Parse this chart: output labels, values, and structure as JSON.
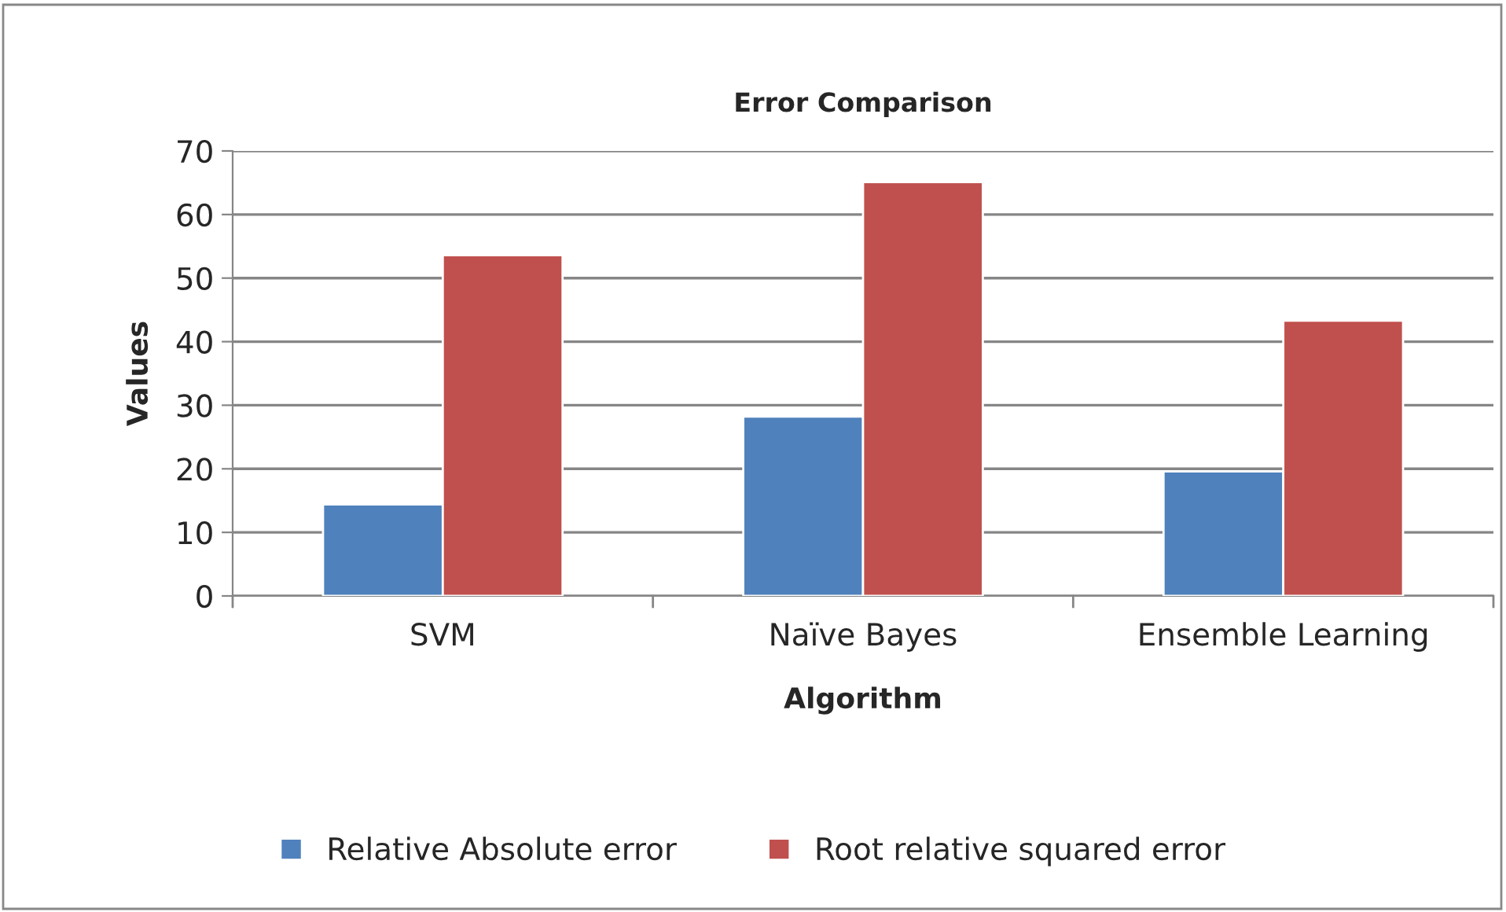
{
  "chart_data": {
    "type": "bar",
    "title": "Error Comparison",
    "xlabel": "Algorithm",
    "ylabel": "Values",
    "categories": [
      "SVM",
      "Naïve Bayes",
      "Ensemble Learning"
    ],
    "series": [
      {
        "name": "Relative Absolute error",
        "color": "#4f81bd",
        "values": [
          14.4,
          28.2,
          19.6
        ]
      },
      {
        "name": "Root relative squared error",
        "color": "#c0504d",
        "values": [
          53.6,
          65.1,
          43.3
        ]
      }
    ],
    "ylim": [
      0,
      70
    ],
    "yticks": [
      0,
      10,
      20,
      30,
      40,
      50,
      60,
      70
    ],
    "grid": "y",
    "legend": "bottom"
  }
}
